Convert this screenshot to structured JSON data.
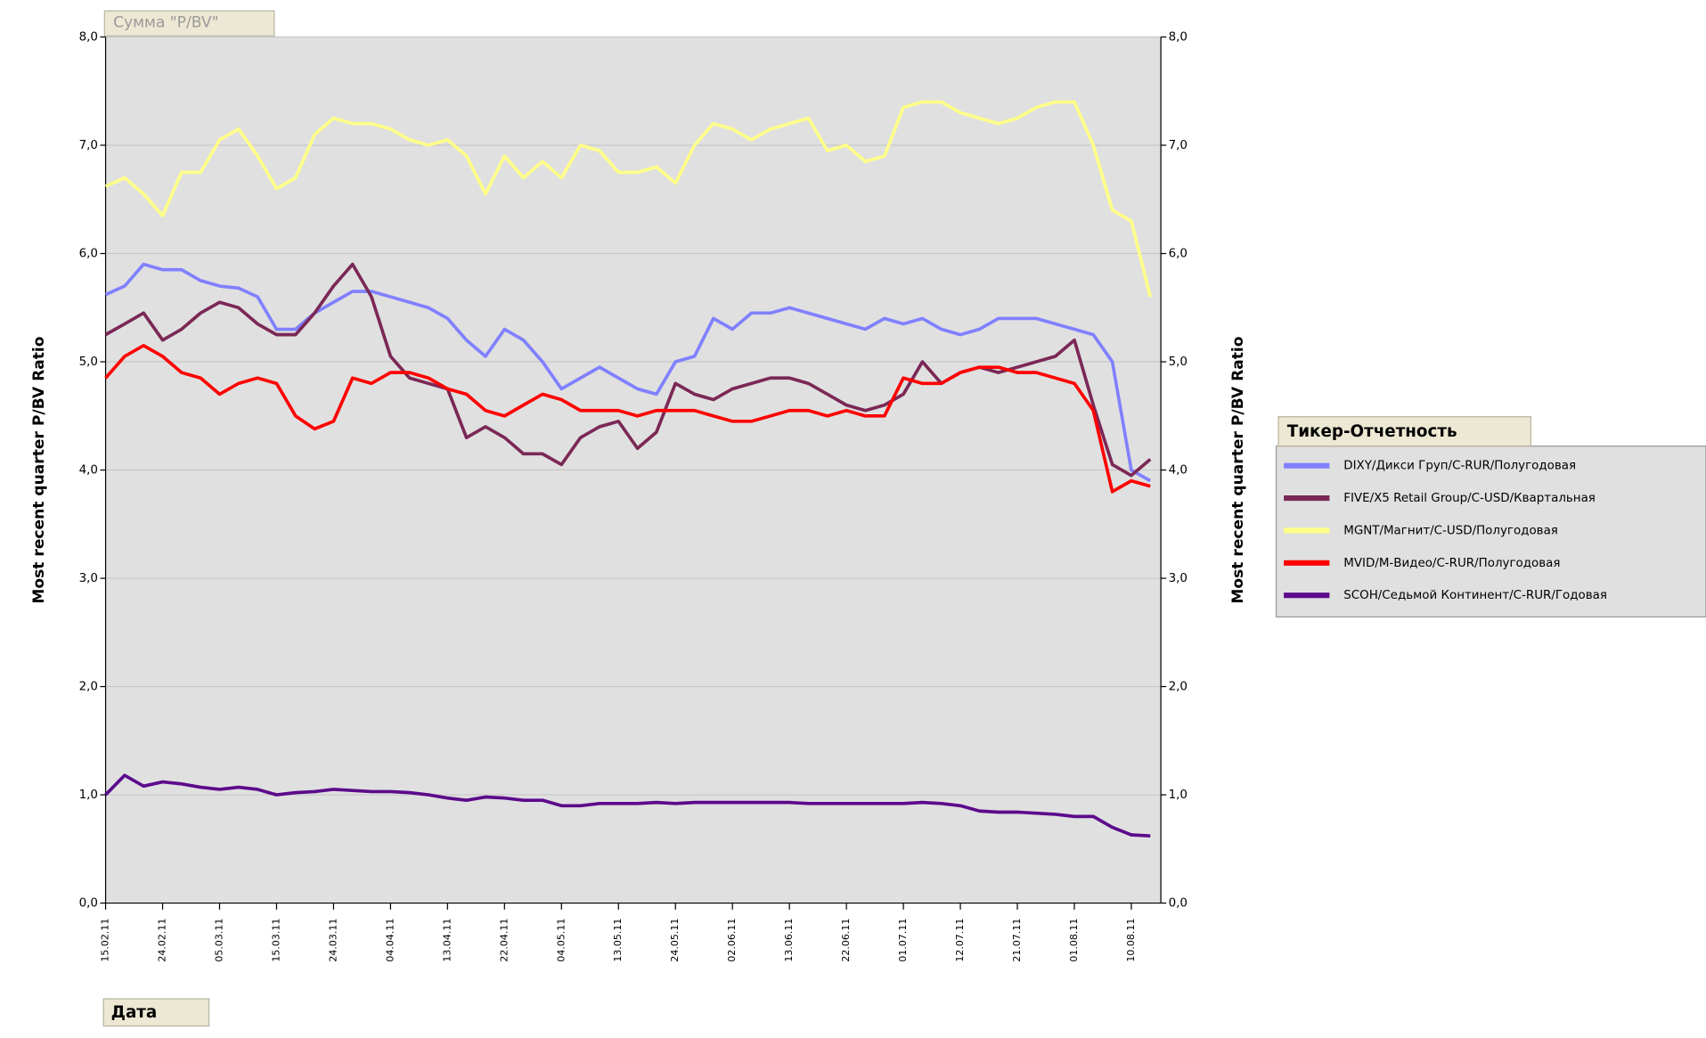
{
  "chart_data": {
    "type": "line",
    "filter_button": "Сумма \"P/BV\"",
    "x_button": "Дата",
    "legend_title": "Тикер-Отчетность",
    "y_label": "Most recent quarter P/BV Ratio",
    "y2_label": "Most recent quarter P/BV Ratio",
    "legend": "right",
    "categories": [
      "15.02.11",
      null,
      null,
      "24.02.11",
      null,
      null,
      "05.03.11",
      null,
      null,
      "15.03.11",
      null,
      null,
      "24.03.11",
      null,
      null,
      "04.04.11",
      null,
      null,
      "13.04.11",
      null,
      null,
      "22.04.11",
      null,
      null,
      "04.05.11",
      null,
      null,
      "13.05.11",
      null,
      null,
      "24.05.11",
      null,
      null,
      "02.06.11",
      null,
      null,
      "13.06.11",
      null,
      null,
      "22.06.11",
      null,
      null,
      "01.07.11",
      null,
      null,
      "12.07.11",
      null,
      null,
      "21.07.11",
      null,
      null,
      "01.08.11",
      null,
      null,
      "10.08.11",
      null
    ],
    "ylim": [
      0,
      8
    ],
    "yticks": [
      {
        "value": 0,
        "label": "0,0"
      },
      {
        "value": 1,
        "label": "1,0"
      },
      {
        "value": 2,
        "label": "2,0"
      },
      {
        "value": 3,
        "label": "3,0"
      },
      {
        "value": 4,
        "label": "4,0"
      },
      {
        "value": 5,
        "label": "5,0"
      },
      {
        "value": 6,
        "label": "6,0"
      },
      {
        "value": 7,
        "label": "7,0"
      },
      {
        "value": 8,
        "label": "8,0"
      }
    ],
    "y2lim": [
      0,
      8
    ],
    "y2ticks": [
      {
        "value": 0,
        "label": "0,0"
      },
      {
        "value": 1,
        "label": "1,0"
      },
      {
        "value": 2,
        "label": "2,0"
      },
      {
        "value": 3,
        "label": "3,0"
      },
      {
        "value": 4,
        "label": "4,0"
      },
      {
        "value": 5,
        "label": "5,0"
      },
      {
        "value": 6,
        "label": "6,0"
      },
      {
        "value": 7,
        "label": "7,0"
      },
      {
        "value": 8,
        "label": "8,0"
      }
    ],
    "grid": true,
    "series": [
      {
        "name": "DIXY/Дикси Груп/C-RUR/Полугодовая",
        "color": "#8080ff",
        "values": [
          5.62,
          5.7,
          5.9,
          5.85,
          5.85,
          5.75,
          5.7,
          5.68,
          5.6,
          5.3,
          5.3,
          5.45,
          5.55,
          5.65,
          5.65,
          5.6,
          5.55,
          5.5,
          5.4,
          5.2,
          5.05,
          5.3,
          5.2,
          5.0,
          4.75,
          4.85,
          4.95,
          4.85,
          4.75,
          4.7,
          5.0,
          5.05,
          5.4,
          5.3,
          5.45,
          5.45,
          5.5,
          5.45,
          5.4,
          5.35,
          5.3,
          5.4,
          5.35,
          5.4,
          5.3,
          5.25,
          5.3,
          5.4,
          5.4,
          5.4,
          5.35,
          5.3,
          5.25,
          5.0,
          4.0,
          3.9
        ]
      },
      {
        "name": "FIVE/X5 Retail Group/C-USD/Квартальная",
        "color": "#7b2856",
        "values": [
          5.25,
          5.35,
          5.45,
          5.2,
          5.3,
          5.45,
          5.55,
          5.5,
          5.35,
          5.25,
          5.25,
          5.45,
          5.7,
          5.9,
          5.6,
          5.05,
          4.85,
          4.8,
          4.75,
          4.3,
          4.4,
          4.3,
          4.15,
          4.15,
          4.05,
          4.3,
          4.4,
          4.45,
          4.2,
          4.35,
          4.8,
          4.7,
          4.65,
          4.75,
          4.8,
          4.85,
          4.85,
          4.8,
          4.7,
          4.6,
          4.55,
          4.6,
          4.7,
          5.0,
          4.8,
          4.9,
          4.95,
          4.9,
          4.95,
          5.0,
          5.05,
          5.2,
          4.6,
          4.05,
          3.95,
          4.1
        ]
      },
      {
        "name": "MGNT/Магнит/C-USD/Полугодовая",
        "color": "#ffff88",
        "values": [
          6.62,
          6.7,
          6.55,
          6.35,
          6.75,
          6.75,
          7.05,
          7.15,
          6.9,
          6.6,
          6.7,
          7.1,
          7.25,
          7.2,
          7.2,
          7.15,
          7.05,
          7.0,
          7.05,
          6.9,
          6.55,
          6.9,
          6.7,
          6.85,
          6.7,
          7.0,
          6.95,
          6.75,
          6.75,
          6.8,
          6.65,
          7.0,
          7.2,
          7.15,
          7.05,
          7.15,
          7.2,
          7.25,
          6.95,
          7.0,
          6.85,
          6.9,
          7.35,
          7.4,
          7.4,
          7.3,
          7.25,
          7.2,
          7.25,
          7.35,
          7.4,
          7.4,
          7.0,
          6.4,
          6.3,
          5.6
        ]
      },
      {
        "name": "MVID/М-Видео/C-RUR/Полугодовая",
        "color": "#ff0000",
        "values": [
          4.85,
          5.05,
          5.15,
          5.05,
          4.9,
          4.85,
          4.7,
          4.8,
          4.85,
          4.8,
          4.5,
          4.38,
          4.45,
          4.85,
          4.8,
          4.9,
          4.9,
          4.85,
          4.75,
          4.7,
          4.55,
          4.5,
          4.6,
          4.7,
          4.65,
          4.55,
          4.55,
          4.55,
          4.5,
          4.55,
          4.55,
          4.55,
          4.5,
          4.45,
          4.45,
          4.5,
          4.55,
          4.55,
          4.5,
          4.55,
          4.5,
          4.5,
          4.85,
          4.8,
          4.8,
          4.9,
          4.95,
          4.95,
          4.9,
          4.9,
          4.85,
          4.8,
          4.55,
          3.8,
          3.9,
          3.85
        ]
      },
      {
        "name": "SCOH/Седьмой Континент/C-RUR/Годовая",
        "color": "#5c0a8c",
        "values": [
          1.0,
          1.18,
          1.08,
          1.12,
          1.1,
          1.07,
          1.05,
          1.07,
          1.05,
          1.0,
          1.02,
          1.03,
          1.05,
          1.04,
          1.03,
          1.03,
          1.02,
          1.0,
          0.97,
          0.95,
          0.98,
          0.97,
          0.95,
          0.95,
          0.9,
          0.9,
          0.92,
          0.92,
          0.92,
          0.93,
          0.92,
          0.93,
          0.93,
          0.93,
          0.93,
          0.93,
          0.93,
          0.92,
          0.92,
          0.92,
          0.92,
          0.92,
          0.92,
          0.93,
          0.92,
          0.9,
          0.85,
          0.84,
          0.84,
          0.83,
          0.82,
          0.8,
          0.8,
          0.7,
          0.63,
          0.62
        ]
      }
    ]
  }
}
